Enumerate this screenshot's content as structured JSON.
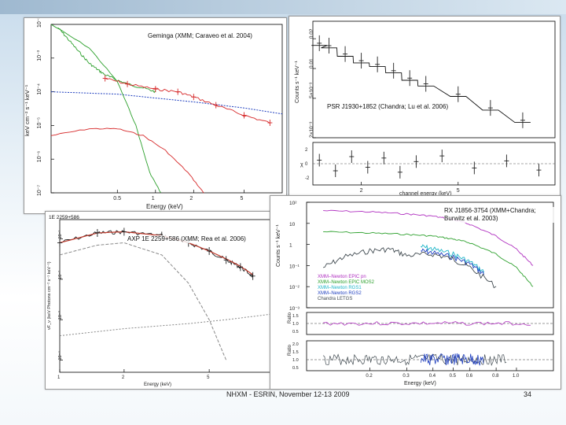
{
  "slide": {
    "footer": "NHXM - ESRIN, November 12-13 2009",
    "page_number": "34"
  },
  "chart_data": [
    {
      "type": "line",
      "title": "Geminga (XMM; Caraveo et al. 2004)",
      "xlabel": "Energy (keV)",
      "ylabel": "keV cm⁻² s⁻¹ keV⁻¹",
      "xscale": "log",
      "yscale": "log",
      "xlim": [
        0.15,
        10
      ],
      "ylim": [
        1e-07,
        0.01
      ],
      "xticks": [
        "0.5",
        "1",
        "2",
        "5"
      ],
      "yticks": [
        "10⁻²",
        "10⁻³",
        "10⁻⁴",
        "10⁻⁵",
        "10⁻⁶",
        "10⁻⁷"
      ],
      "series": [
        {
          "name": "data (green)",
          "color": "#2ca02c",
          "x": [
            0.17,
            0.2,
            0.25,
            0.3,
            0.35,
            0.4,
            0.5,
            0.6,
            0.8,
            1.0
          ],
          "y": [
            0.008,
            0.004,
            0.0015,
            0.0007,
            0.00045,
            0.00032,
            0.00022,
            0.00017,
            0.00013,
            0.0001
          ]
        },
        {
          "name": "data (red)",
          "color": "#d62728",
          "x": [
            0.4,
            0.6,
            1.0,
            1.5,
            2.0,
            3.0,
            5.0,
            8.0
          ],
          "y": [
            0.00025,
            0.00017,
            0.00012,
            0.0001,
            7e-05,
            4e-05,
            2e-05,
            1.2e-05
          ]
        },
        {
          "name": "power law",
          "color": "#1f3fbf",
          "x": [
            0.15,
            0.5,
            1,
            2,
            5,
            10
          ],
          "y": [
            0.0001,
            8.5e-05,
            6.5e-05,
            5e-05,
            3.3e-05,
            2.2e-05
          ]
        },
        {
          "name": "blackbody (green)",
          "color": "#2ca02c",
          "x": [
            0.15,
            0.3,
            0.5,
            0.7,
            0.9,
            1.1
          ],
          "y": [
            0.01,
            0.002,
            0.0002,
            1e-05,
            4e-07,
            1e-07
          ]
        },
        {
          "name": "blackbody (red)",
          "color": "#d62728",
          "x": [
            0.15,
            0.3,
            0.5,
            0.8,
            1.2,
            1.8,
            2.4
          ],
          "y": [
            5e-06,
            8e-06,
            8e-06,
            5e-06,
            1.8e-06,
            4e-07,
            1e-07
          ]
        }
      ]
    },
    {
      "type": "scatter",
      "title": "PSR J1930+1852 (Chandra; Lu et al. 2006)",
      "xlabel": "channel energy (keV)",
      "ylabel": "Counts s⁻¹ keV⁻¹",
      "yscale": "log",
      "xlim": [
        0.5,
        8
      ],
      "ylim": [
        0.002,
        0.03
      ],
      "xticks": [
        "2",
        "5"
      ],
      "yticks": [
        "0.02",
        "0.01",
        "5×10⁻³",
        "2×10⁻³"
      ],
      "series": [
        {
          "name": "spectrum",
          "color": "#222222",
          "x": [
            0.7,
            1.0,
            1.5,
            2.0,
            2.5,
            3.0,
            3.5,
            4.0,
            5.0,
            6.0,
            7.0
          ],
          "y": [
            0.018,
            0.017,
            0.014,
            0.012,
            0.011,
            0.0095,
            0.008,
            0.007,
            0.0055,
            0.004,
            0.003
          ]
        }
      ],
      "residuals": {
        "ylabel": "χ",
        "yticks": [
          "2",
          "0",
          "-2"
        ],
        "x": [
          0.7,
          1.2,
          1.7,
          2.2,
          2.7,
          3.2,
          3.7,
          4.5,
          5.5,
          6.5,
          7.5
        ],
        "y": [
          0.5,
          -1,
          1,
          -0.5,
          0.8,
          -1.2,
          0.3,
          1.1,
          -0.6,
          0.4,
          -0.9
        ]
      }
    },
    {
      "type": "line",
      "title": "AXP 1E 2259+586 (XMM; Rea et al. 2006)",
      "corner_label": "1E 2259+586",
      "xlabel": "Energy (keV)",
      "ylabel": "νF_ν (keV Photons cm⁻² s⁻¹ keV⁻¹)",
      "xscale": "log",
      "yscale": "log",
      "xlim": [
        1,
        10
      ],
      "xticks": [
        "1",
        "2",
        "5",
        "10"
      ],
      "yticks": [
        "10⁻¹",
        "10⁻²",
        "10⁻³",
        "10⁻⁴"
      ],
      "series": [
        {
          "name": "data",
          "color": "#222222",
          "x": [
            1.0,
            1.5,
            2.0,
            3.0,
            4.0,
            5.0,
            6.0,
            7.0,
            8.0
          ],
          "y": [
            0.08,
            0.14,
            0.15,
            0.12,
            0.08,
            0.05,
            0.03,
            0.02,
            0.012
          ]
        },
        {
          "name": "model",
          "color": "#c0392b",
          "x": [
            1.0,
            1.5,
            2.0,
            3.0,
            4.0,
            5.0,
            6.0,
            7.0,
            8.0
          ],
          "y": [
            0.08,
            0.14,
            0.15,
            0.12,
            0.08,
            0.05,
            0.032,
            0.021,
            0.013
          ]
        },
        {
          "name": "soft component",
          "color": "#888888",
          "x": [
            1.0,
            1.5,
            2.0,
            3.0,
            4.0,
            5.0,
            6.0
          ],
          "y": [
            0.04,
            0.07,
            0.08,
            0.04,
            0.008,
            0.001,
            0.0001
          ]
        },
        {
          "name": "hard component",
          "color": "#888888",
          "x": [
            1.0,
            2.0,
            4.0,
            6.0,
            8.0,
            10.0
          ],
          "y": [
            0.0004,
            0.0006,
            0.0008,
            0.001,
            0.0012,
            0.0014
          ]
        }
      ]
    },
    {
      "type": "line",
      "title": "RX J1856-3754 (XMM+Chandra; Burwitz et al. 2003)",
      "xlabel": "Energy (keV)",
      "ylabel": "Counts s⁻¹ keV⁻¹",
      "xscale": "log",
      "yscale": "log",
      "xlim": [
        0.1,
        1.5
      ],
      "ylim": [
        0.001,
        100.0
      ],
      "xticks": [
        "0.2",
        "0.3",
        "0.4",
        "0.5",
        "0.6",
        "0.8",
        "1.0"
      ],
      "yticks": [
        "10²",
        "10",
        "1",
        "10⁻¹",
        "10⁻²",
        "10⁻³"
      ],
      "legend": [
        "XMM–Newton EPIC pn",
        "XMM–Newton EPIC MOS2",
        "XMM–Newton RGS1",
        "XMM–Newton RGS2",
        "Chandra LETGS"
      ],
      "series": [
        {
          "name": "XMM–Newton EPIC pn",
          "color": "#b030c0",
          "x": [
            0.12,
            0.2,
            0.3,
            0.4,
            0.5,
            0.6,
            0.8,
            1.0,
            1.2
          ],
          "y": [
            40,
            35,
            28,
            22,
            15,
            9,
            2.5,
            0.6,
            0.1
          ]
        },
        {
          "name": "XMM–Newton EPIC MOS2",
          "color": "#2ca02c",
          "x": [
            0.12,
            0.2,
            0.3,
            0.4,
            0.5,
            0.6,
            0.8,
            1.0,
            1.2
          ],
          "y": [
            4,
            3.5,
            3,
            2.5,
            1.8,
            1.2,
            0.35,
            0.08,
            0.01
          ]
        },
        {
          "name": "XMM–Newton RGS1",
          "color": "#1fb6c8",
          "x": [
            0.35,
            0.4,
            0.5,
            0.6,
            0.7
          ],
          "y": [
            0.8,
            0.6,
            0.35,
            0.15,
            0.05
          ]
        },
        {
          "name": "XMM–Newton RGS2",
          "color": "#1f3fbf",
          "x": [
            0.35,
            0.4,
            0.5,
            0.6,
            0.7
          ],
          "y": [
            0.5,
            0.4,
            0.25,
            0.12,
            0.04
          ]
        },
        {
          "name": "Chandra LETGS",
          "color": "#404a50",
          "x": [
            0.12,
            0.15,
            0.2,
            0.25,
            0.3,
            0.4,
            0.5,
            0.6,
            0.8
          ],
          "y": [
            0.08,
            0.25,
            0.5,
            0.6,
            0.3,
            0.35,
            0.2,
            0.08,
            0.01
          ]
        }
      ],
      "ratio_panels": [
        {
          "ylabel": "Ratio",
          "yticks": [
            "1.5",
            "1.0",
            "0.5"
          ]
        },
        {
          "ylabel": "Ratio",
          "yticks": [
            "2.0",
            "1.5",
            "1.0",
            "0.5"
          ]
        }
      ]
    }
  ]
}
